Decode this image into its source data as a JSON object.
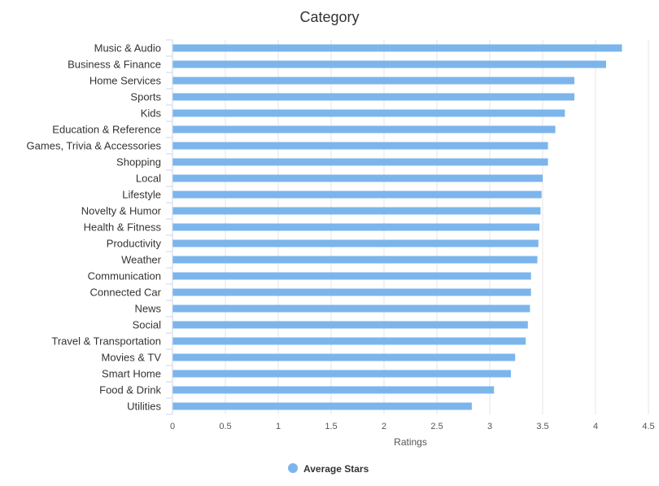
{
  "chart_data": {
    "type": "bar",
    "orientation": "horizontal",
    "title": "Category",
    "xlabel": "Ratings",
    "ylabel": "",
    "xlim": [
      0,
      4.5
    ],
    "x_ticks": [
      "0",
      "0.5",
      "1",
      "1.5",
      "2",
      "2.5",
      "3",
      "3.5",
      "4",
      "4.5"
    ],
    "grid": true,
    "legend_position": "bottom-center",
    "categories": [
      "Music & Audio",
      "Business & Finance",
      "Home Services",
      "Sports",
      "Kids",
      "Education & Reference",
      "Games, Trivia & Accessories",
      "Shopping",
      "Local",
      "Lifestyle",
      "Novelty & Humor",
      "Health & Fitness",
      "Productivity",
      "Weather",
      "Communication",
      "Connected Car",
      "News",
      "Social",
      "Travel & Transportation",
      "Movies & TV",
      "Smart Home",
      "Food & Drink",
      "Utilities"
    ],
    "series": [
      {
        "name": "Average Stars",
        "color": "#7cb5ec",
        "values": [
          4.25,
          4.1,
          3.8,
          3.8,
          3.71,
          3.62,
          3.55,
          3.55,
          3.5,
          3.49,
          3.48,
          3.47,
          3.46,
          3.45,
          3.39,
          3.39,
          3.38,
          3.36,
          3.34,
          3.24,
          3.2,
          3.04,
          2.83
        ]
      }
    ]
  }
}
